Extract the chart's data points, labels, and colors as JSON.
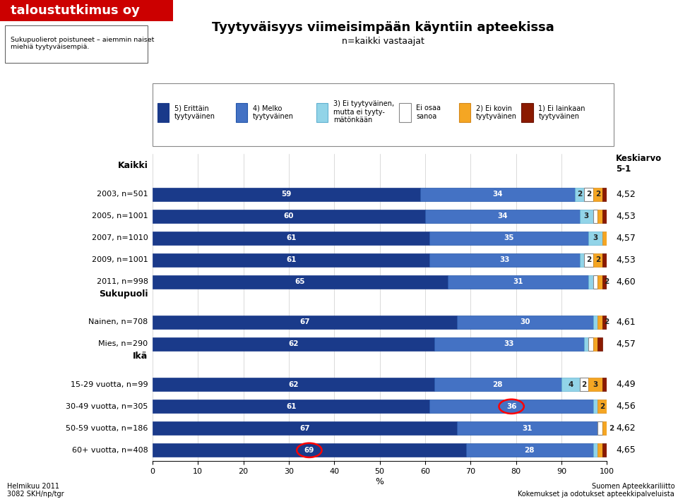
{
  "title": "Tyytyväisyys viimeisimpään käyntiin apteekissa",
  "subtitle": "n=kaikki vastaajat",
  "note_left": "Sukupuolierot poistuneet – aiemmin naiset\nmiehiä tyytyväisempiä.",
  "footer_left": "Helmikuu 2011\n3082 SKH/np/tgr",
  "footer_right": "Suomen Apteekkariliitto\nKokemukset ja odotukset apteekkipalveluista",
  "legend_labels": [
    "5) Erittäin\ntyytyväinen",
    "4) Melko\ntyytyväinen",
    "3) Ei tyytyväinen,\nmutta ei tyyty-\nmätönkään",
    "Ei osaa\nsanoa",
    "2) Ei kovin\ntyytyväinen",
    "1) Ei lainkaan\ntyytyväinen"
  ],
  "legend_colors": [
    "#1a3a8a",
    "#4472c4",
    "#92d4e8",
    "#ffffff",
    "#f5a623",
    "#8b1a00"
  ],
  "legend_border_colors": [
    "#1a3a8a",
    "#2255aa",
    "#60b0d0",
    "#888888",
    "#d4881a",
    "#6a1200"
  ],
  "ylabel_right": "Keskiarvo\n5-1",
  "categories": [
    "2003, n=501",
    "2005, n=1001",
    "2007, n=1010",
    "2009, n=1001",
    "2011, n=998",
    "Nainen, n=708",
    "Mies, n=290",
    "15-29 vuotta, n=99",
    "30-49 vuotta, n=305",
    "50-59 vuotta, n=186",
    "60+ vuotta, n=408"
  ],
  "section_labels": [
    "Kaikki",
    "Sukupuoli",
    "Ikä"
  ],
  "highlighted_row": 4,
  "circled_values": [
    {
      "row": 8,
      "segment": 1
    },
    {
      "row": 10,
      "segment": 0
    }
  ],
  "data": [
    [
      59,
      34,
      2,
      2,
      2,
      1
    ],
    [
      60,
      34,
      3,
      1,
      1,
      1
    ],
    [
      61,
      35,
      3,
      0,
      1,
      0
    ],
    [
      61,
      33,
      1,
      2,
      2,
      1
    ],
    [
      65,
      31,
      1,
      1,
      1,
      2
    ],
    [
      67,
      30,
      1,
      0,
      1,
      2
    ],
    [
      62,
      33,
      1,
      1,
      1,
      1
    ],
    [
      62,
      28,
      4,
      2,
      3,
      1
    ],
    [
      61,
      36,
      1,
      0,
      2,
      1
    ],
    [
      67,
      31,
      0,
      1,
      1,
      2
    ],
    [
      69,
      28,
      1,
      0,
      1,
      1
    ]
  ],
  "averages": [
    "4,52",
    "4,53",
    "4,57",
    "4,53",
    "4,60",
    "4,61",
    "4,57",
    "4,49",
    "4,56",
    "4,62",
    "4,65"
  ],
  "colors": [
    "#1a3a8a",
    "#4472c4",
    "#92d4e8",
    "#ffffff",
    "#f5a623",
    "#8b1a00"
  ],
  "bar_edge_colors": [
    "#1a3a8a",
    "#2255aa",
    "#60b0d0",
    "#888888",
    "#d4881a",
    "#6a1200"
  ],
  "xlabel": "%",
  "bg_color": "#ffffff",
  "header_bg_color": "#cc0000",
  "header_text_color": "#ffffff",
  "header_text": "taloustutkimus oy"
}
